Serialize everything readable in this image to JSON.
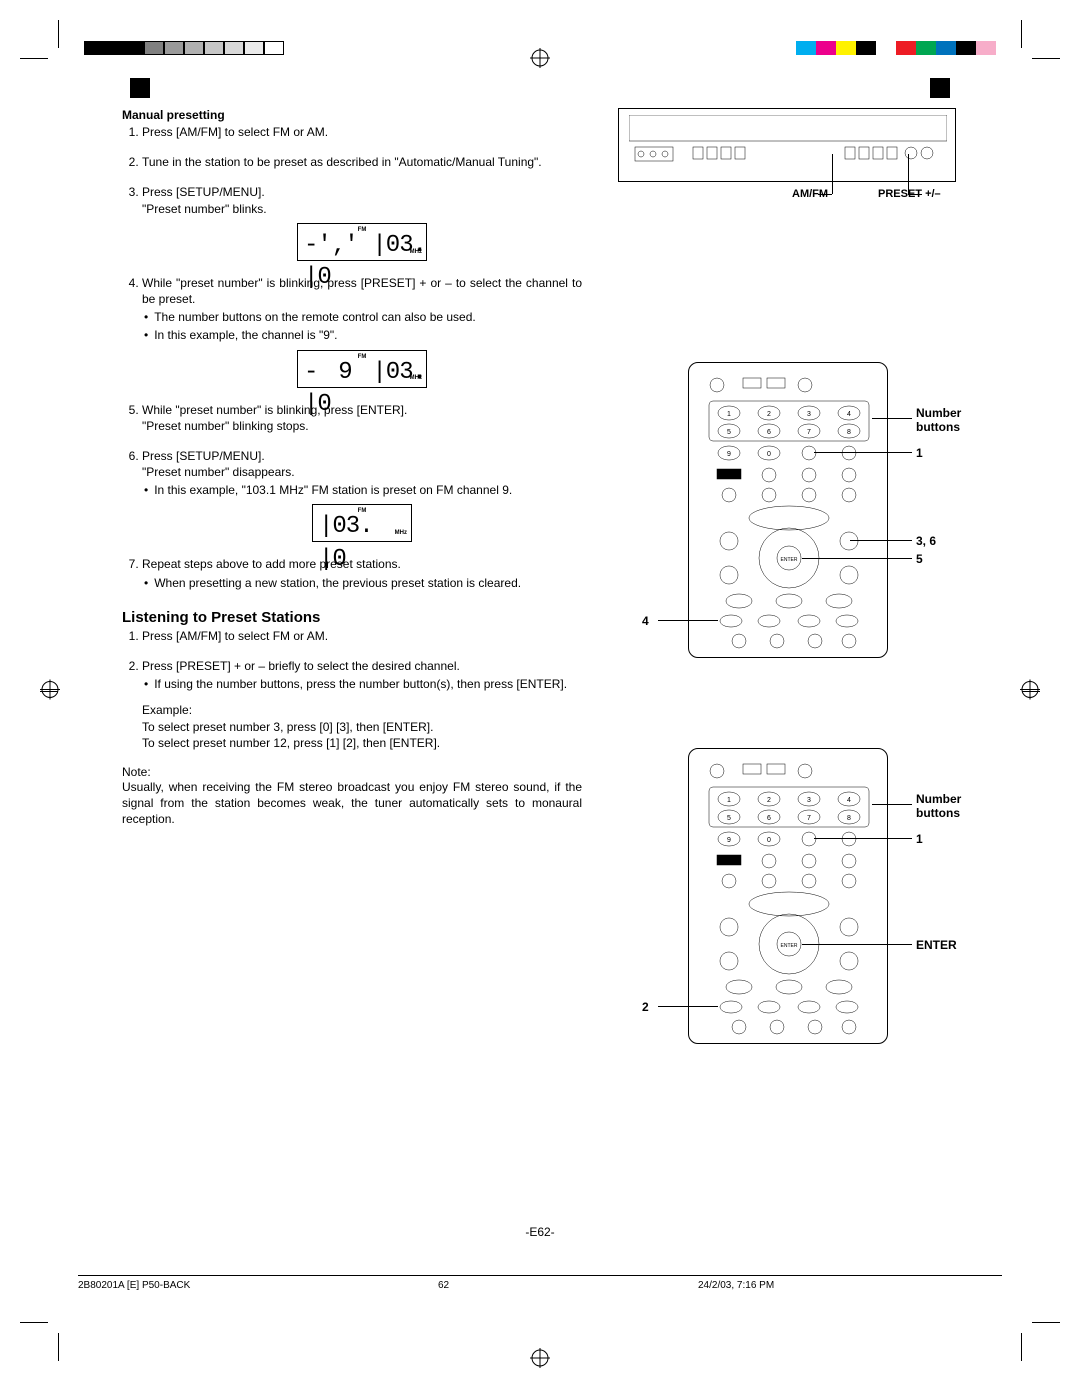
{
  "colors": {
    "left_strip": [
      "#000000",
      "#000000",
      "#000000",
      "#808080",
      "#9a9a9a",
      "#b0b0b0",
      "#c6c6c6",
      "#d8d8d8",
      "#eaeaea",
      "#ffffff"
    ],
    "right_strip": [
      "#00aeef",
      "#ec008c",
      "#fff200",
      "#000000",
      "#ffffff",
      "#ed1c24",
      "#00a651",
      "#0072bc",
      "#000000",
      "#f7adc9"
    ]
  },
  "heading_manual": "Manual presetting",
  "steps_manual": {
    "s1": "Press [AM/FM] to select FM or AM.",
    "s2": "Tune in the station to be preset as described in \"Automatic/Manual Tuning\".",
    "s3a": "Press [SETUP/MENU].",
    "s3b": "\"Preset number\" blinks.",
    "s4a": "While \"preset number\" is blinking, press [PRESET] + or – to select the channel to be preset.",
    "s4b1": "The number buttons on the remote control can also be used.",
    "s4b2": "In this example, the channel is \"9\".",
    "s5a": "While \"preset number\" is blinking, press [ENTER].",
    "s5b": "\"Preset number\" blinking stops.",
    "s6a": "Press [SETUP/MENU].",
    "s6b": "\"Preset number\" disappears.",
    "s6c": "In this example, \"103.1 MHz\" FM station is preset on FM channel 9.",
    "s7a": "Repeat steps above to add more preset stations.",
    "s7b": "When presetting a new station, the previous preset station is cleared."
  },
  "heading_listen": "Listening to Preset Stations",
  "steps_listen": {
    "s1": "Press [AM/FM] to select FM or AM.",
    "s2a": "Press [PRESET] + or – briefly to select the desired channel.",
    "s2b": "If using the number buttons, press the number button(s), then press [ENTER].",
    "example_label": "Example:",
    "example_l1": "To select preset number 3, press [0] [3], then [ENTER].",
    "example_l2": "To select preset number 12, press [1] [2], then [ENTER]."
  },
  "note_label": "Note:",
  "note_body": "Usually, when receiving the FM stereo broadcast you enjoy FM stereo sound, if the signal from the station becomes weak, the tuner automatically sets to monaural reception.",
  "lcd": {
    "fm": "FM",
    "mhz": "MHz",
    "disp1": "-'‚' |03. |0",
    "disp2": "- 9 |03. |0",
    "disp3": "|03. |0"
  },
  "device_labels": {
    "amfm": "AM/FM",
    "preset": "PRESET +/–"
  },
  "remote_callouts": {
    "number_buttons": "Number buttons",
    "one": "1",
    "three_six": "3, 6",
    "five": "5",
    "four": "4",
    "two": "2",
    "enter": "ENTER"
  },
  "page_number": "-E62-",
  "footer": {
    "f1": "2B80201A [E] P50-BACK",
    "f2": "62",
    "f3": "24/2/03, 7:16 PM"
  }
}
